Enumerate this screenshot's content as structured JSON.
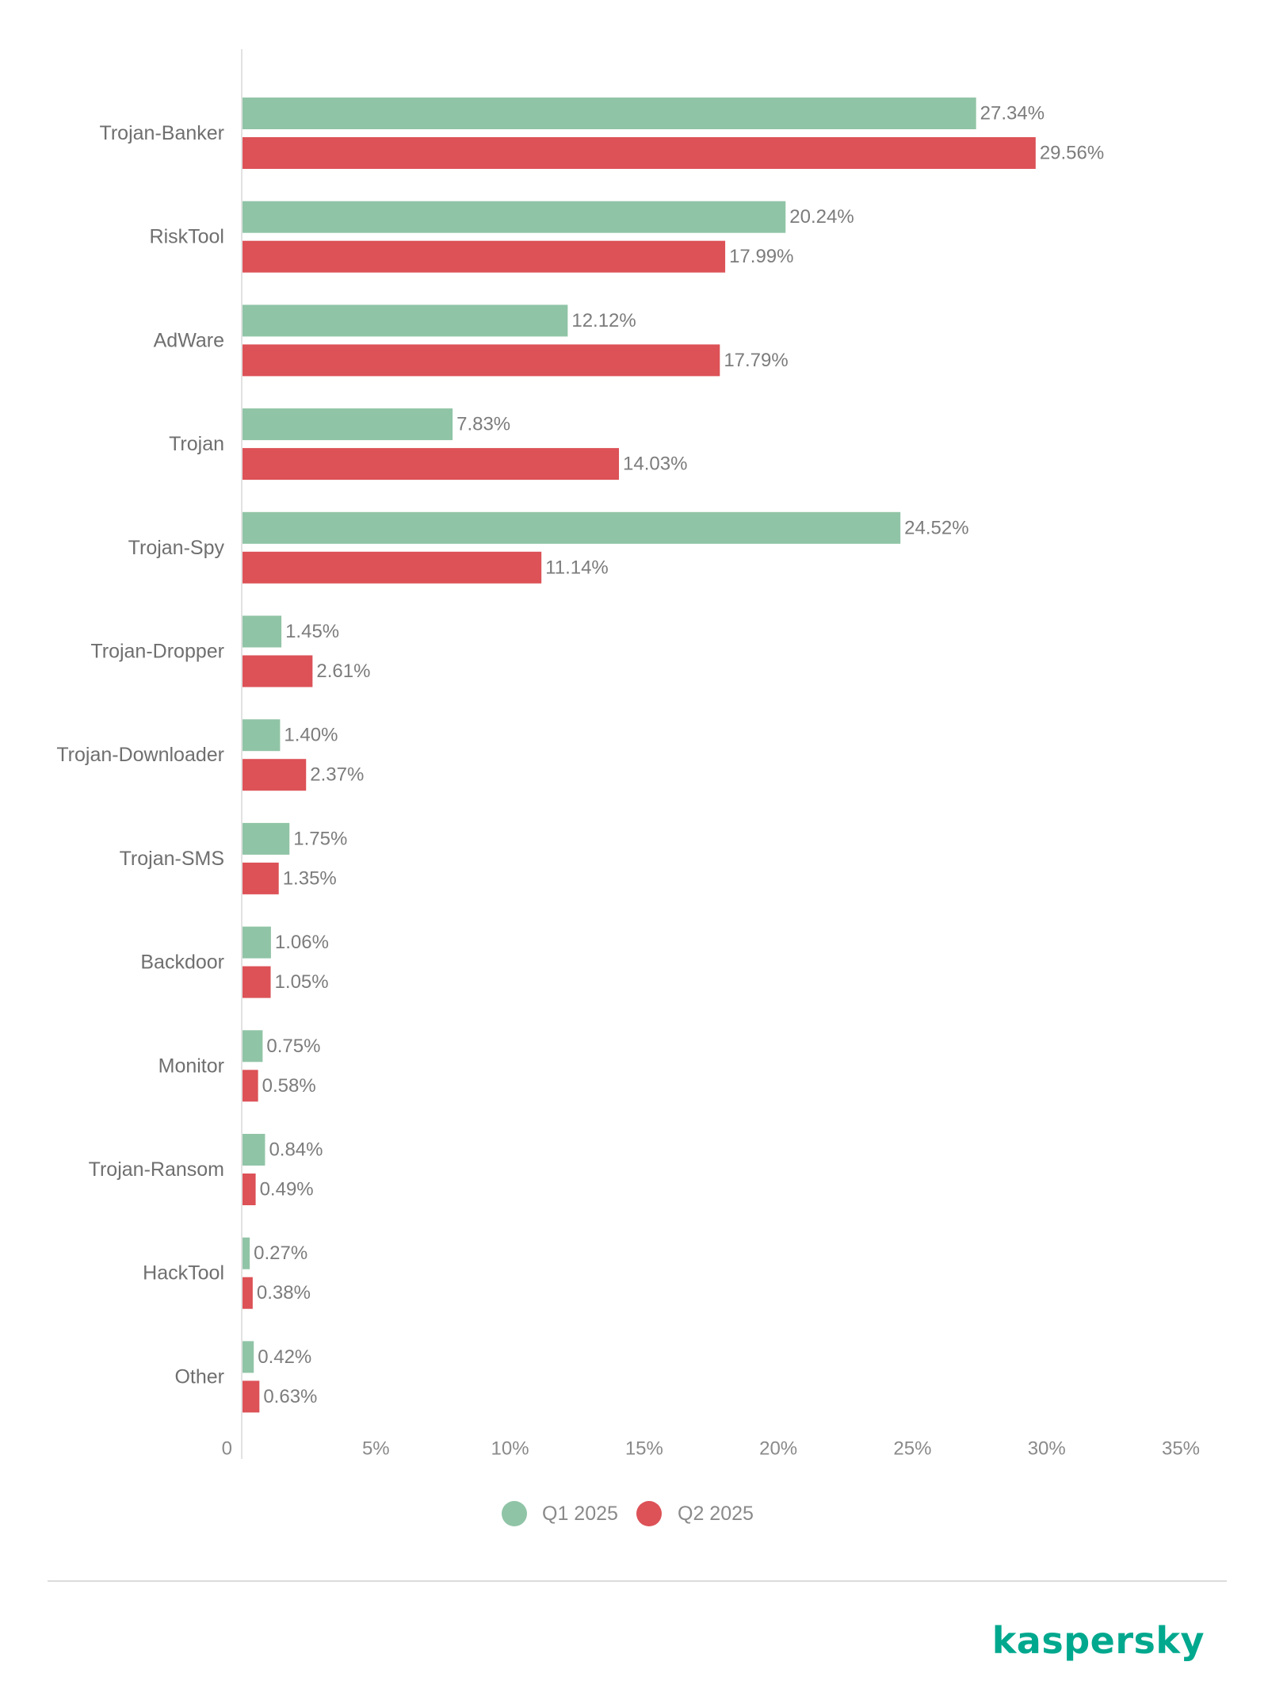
{
  "chart_data": {
    "type": "bar",
    "orientation": "horizontal",
    "categories": [
      "Trojan-Banker",
      "RiskTool",
      "AdWare",
      "Trojan",
      "Trojan-Spy",
      "Trojan-Dropper",
      "Trojan-Downloader",
      "Trojan-SMS",
      "Backdoor",
      "Monitor",
      "Trojan-Ransom",
      "HackTool",
      "Other"
    ],
    "series": [
      {
        "name": "Q1 2025",
        "color": "#90c4a6",
        "values": [
          27.34,
          20.24,
          12.12,
          7.83,
          24.52,
          1.45,
          1.4,
          1.75,
          1.06,
          0.75,
          0.84,
          0.27,
          0.42
        ],
        "labels": [
          "27.34%",
          "20.24%",
          "12.12%",
          "7.83%",
          "24.52%",
          "1.45%",
          "1.40%",
          "1.75%",
          "1.06%",
          "0.75%",
          "0.84%",
          "0.27%",
          "0.42%"
        ]
      },
      {
        "name": "Q2 2025",
        "color": "#dc5257",
        "values": [
          29.56,
          17.99,
          17.79,
          14.03,
          11.14,
          2.61,
          2.37,
          1.35,
          1.05,
          0.58,
          0.49,
          0.38,
          0.63
        ],
        "labels": [
          "29.56%",
          "17.99%",
          "17.79%",
          "14.03%",
          "11.14%",
          "2.61%",
          "2.37%",
          "1.35%",
          "1.05%",
          "0.58%",
          "0.49%",
          "0.38%",
          "0.63%"
        ]
      }
    ],
    "xlim": [
      0,
      35
    ],
    "xticks": [
      0,
      5,
      10,
      15,
      20,
      25,
      30,
      35
    ],
    "xtick_labels": [
      "0",
      "5%",
      "10%",
      "15%",
      "20%",
      "25%",
      "30%",
      "35%"
    ],
    "grid": false,
    "legend_position": "bottom-center",
    "title": "",
    "xlabel": "",
    "ylabel": ""
  },
  "brand": {
    "logo_text": "kaspersky",
    "color": "#00a88e"
  }
}
